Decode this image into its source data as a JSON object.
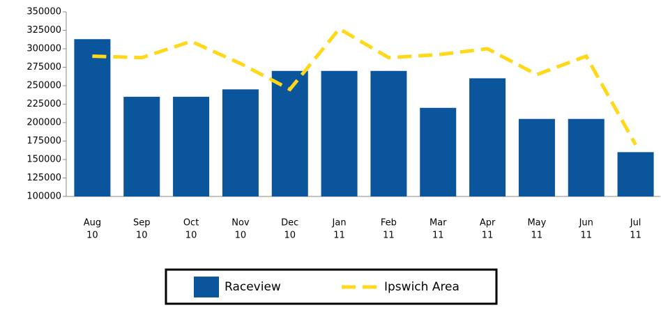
{
  "chart_data": {
    "type": "bar_line",
    "categories": [
      [
        "Aug",
        "10"
      ],
      [
        "Sep",
        "10"
      ],
      [
        "Oct",
        "10"
      ],
      [
        "Nov",
        "10"
      ],
      [
        "Dec",
        "10"
      ],
      [
        "Jan",
        "11"
      ],
      [
        "Feb",
        "11"
      ],
      [
        "Mar",
        "11"
      ],
      [
        "Apr",
        "11"
      ],
      [
        "May",
        "11"
      ],
      [
        "Jun",
        "11"
      ],
      [
        "Jul",
        "11"
      ]
    ],
    "series": [
      {
        "name": "Raceview",
        "type": "bar",
        "color": "#0a559c",
        "values": [
          313000,
          235000,
          235000,
          245000,
          270000,
          270000,
          270000,
          220000,
          260000,
          205000,
          205000,
          160000
        ]
      },
      {
        "name": "Ipswich Area",
        "type": "line",
        "color": "#ffd81a",
        "values": [
          290000,
          288000,
          310000,
          280000,
          245000,
          327000,
          288000,
          292000,
          300000,
          265000,
          290000,
          170000
        ]
      }
    ],
    "ylim": [
      100000,
      350000
    ],
    "yticks": [
      100000,
      125000,
      150000,
      175000,
      200000,
      225000,
      250000,
      275000,
      300000,
      325000,
      350000
    ],
    "grid": false,
    "legend": "bottom"
  }
}
